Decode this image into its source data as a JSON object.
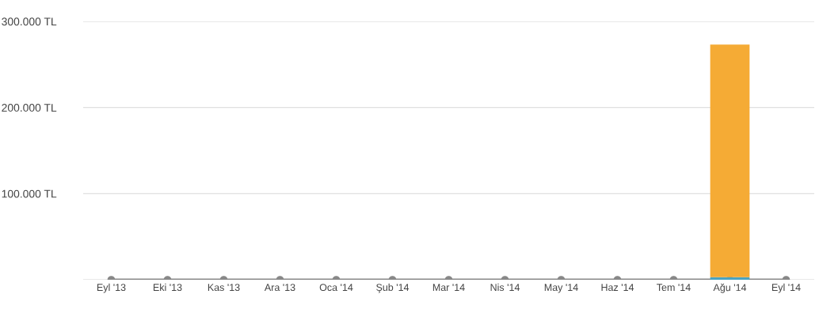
{
  "chart_data": {
    "type": "bar",
    "stacked": true,
    "categories": [
      "Eyl '13",
      "Eki '13",
      "Kas '13",
      "Ara '13",
      "Oca '14",
      "Şub '14",
      "Mar '14",
      "Nis '14",
      "May '14",
      "Haz '14",
      "Tem '14",
      "Ağu '14",
      "Eyl '14"
    ],
    "series": [
      {
        "color": "#4ba3bf",
        "values": [
          null,
          null,
          null,
          null,
          null,
          null,
          null,
          null,
          null,
          null,
          null,
          3000,
          null
        ]
      },
      {
        "color": "#f5ab35",
        "values": [
          null,
          null,
          null,
          null,
          null,
          null,
          null,
          null,
          null,
          null,
          null,
          270000,
          null
        ]
      },
      {
        "type": "line",
        "color": "#888888",
        "marker": "circle",
        "values": [
          0,
          0,
          0,
          0,
          0,
          0,
          0,
          0,
          0,
          0,
          0,
          0,
          0
        ]
      }
    ],
    "ylim": [
      0,
      300000
    ],
    "yticks": [
      {
        "value": 0,
        "label": null
      },
      {
        "value": 100000,
        "label": "100.000 TL"
      },
      {
        "value": 200000,
        "label": "200.000 TL"
      },
      {
        "value": 300000,
        "label": "300.000 TL"
      }
    ],
    "grid": "y",
    "legend": false
  }
}
